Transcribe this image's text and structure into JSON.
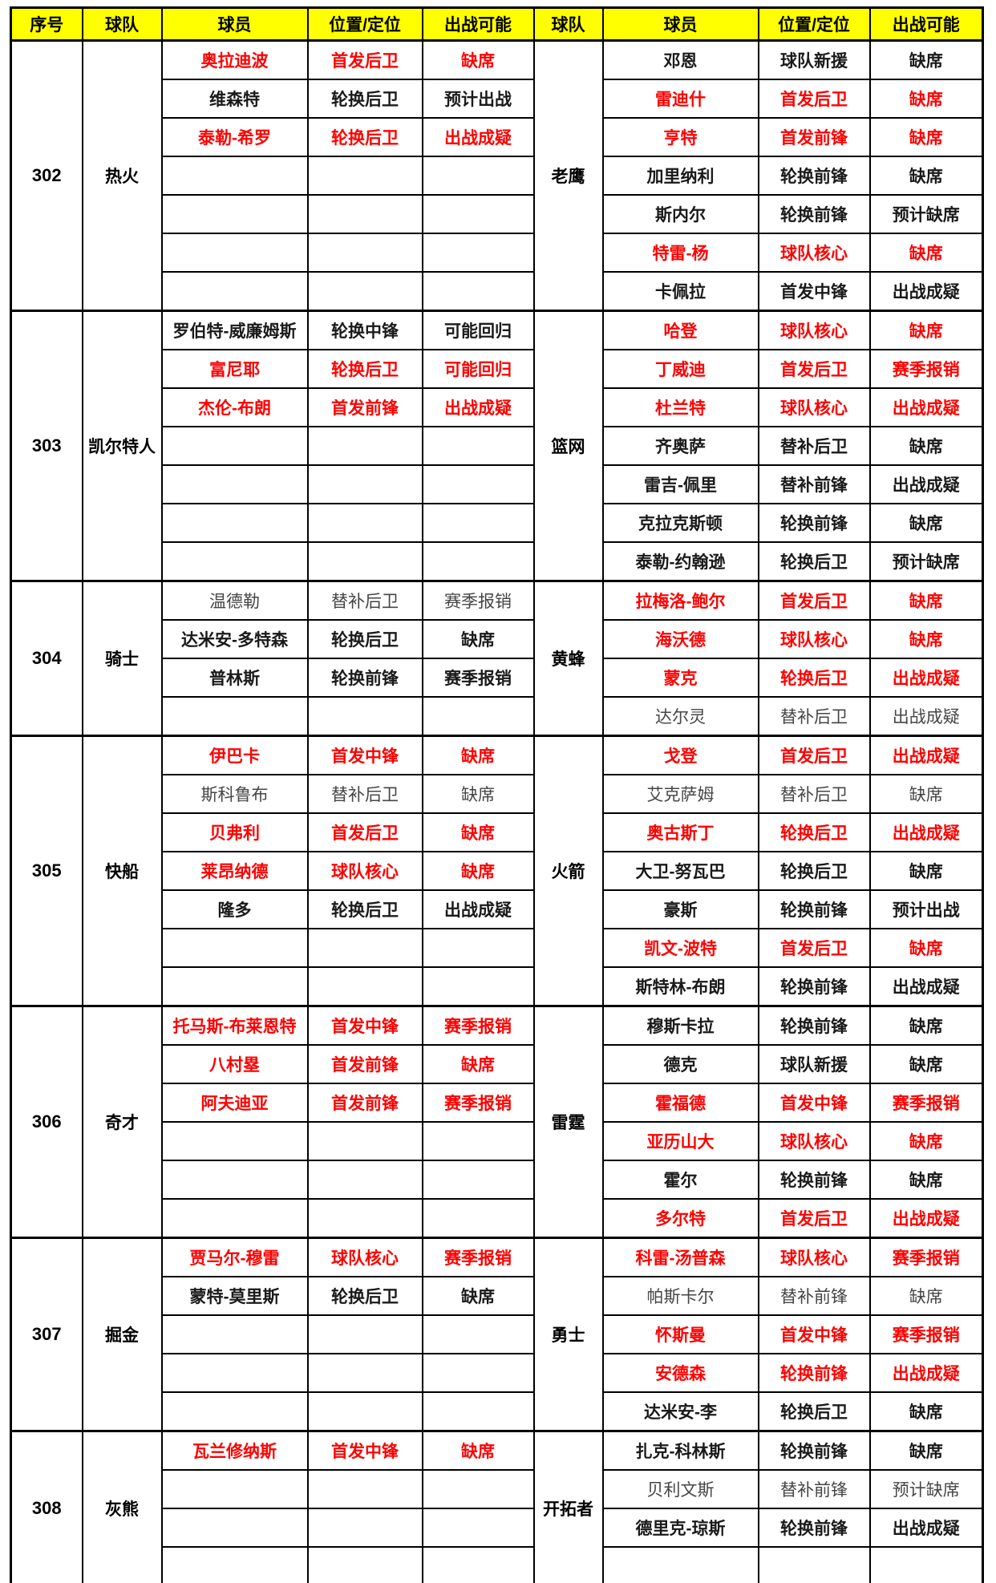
{
  "header": {
    "cols": [
      "序号",
      "球队",
      "球员",
      "位置/定位",
      "出战可能",
      "球队",
      "球员",
      "位置/定位",
      "出战可能"
    ]
  },
  "colors": {
    "header_bg": "#FFFF00",
    "red_text": "#FE0000",
    "black_text": "#1A1A1A",
    "grey_text": "#454545",
    "border": "#000000"
  },
  "sections": [
    {
      "id": "302",
      "left_team": "热火",
      "right_team": "老鹰",
      "rows": [
        {
          "l": [
            "奥拉迪波",
            "首发后卫",
            "缺席"
          ],
          "ls": "red",
          "r": [
            "邓恩",
            "球队新援",
            "缺席"
          ],
          "rs": "black"
        },
        {
          "l": [
            "维森特",
            "轮换后卫",
            "预计出战"
          ],
          "ls": "black",
          "r": [
            "雷迪什",
            "首发后卫",
            "缺席"
          ],
          "rs": "red"
        },
        {
          "l": [
            "泰勒-希罗",
            "轮换后卫",
            "出战成疑"
          ],
          "ls": "red",
          "r": [
            "亨特",
            "首发前锋",
            "缺席"
          ],
          "rs": "red"
        },
        {
          "l": [
            "",
            "",
            ""
          ],
          "ls": "black",
          "r": [
            "加里纳利",
            "轮换前锋",
            "缺席"
          ],
          "rs": "black"
        },
        {
          "l": [
            "",
            "",
            ""
          ],
          "ls": "black",
          "r": [
            "斯内尔",
            "轮换前锋",
            "预计缺席"
          ],
          "rs": "black"
        },
        {
          "l": [
            "",
            "",
            ""
          ],
          "ls": "black",
          "r": [
            "特雷-杨",
            "球队核心",
            "缺席"
          ],
          "rs": "red"
        },
        {
          "l": [
            "",
            "",
            ""
          ],
          "ls": "black",
          "r": [
            "卡佩拉",
            "首发中锋",
            "出战成疑"
          ],
          "rs": "black"
        }
      ]
    },
    {
      "id": "303",
      "left_team": "凯尔特人",
      "right_team": "篮网",
      "rows": [
        {
          "l": [
            "罗伯特-威廉姆斯",
            "轮换中锋",
            "可能回归"
          ],
          "ls": "black",
          "r": [
            "哈登",
            "球队核心",
            "缺席"
          ],
          "rs": "red"
        },
        {
          "l": [
            "富尼耶",
            "轮换后卫",
            "可能回归"
          ],
          "ls": "red",
          "r": [
            "丁威迪",
            "首发后卫",
            "赛季报销"
          ],
          "rs": "red"
        },
        {
          "l": [
            "杰伦-布朗",
            "首发前锋",
            "出战成疑"
          ],
          "ls": "red",
          "r": [
            "杜兰特",
            "球队核心",
            "出战成疑"
          ],
          "rs": "red"
        },
        {
          "l": [
            "",
            "",
            ""
          ],
          "ls": "black",
          "r": [
            "齐奥萨",
            "替补后卫",
            "缺席"
          ],
          "rs": "black"
        },
        {
          "l": [
            "",
            "",
            ""
          ],
          "ls": "black",
          "r": [
            "雷吉-佩里",
            "替补前锋",
            "出战成疑"
          ],
          "rs": "black"
        },
        {
          "l": [
            "",
            "",
            ""
          ],
          "ls": "black",
          "r": [
            "克拉克斯顿",
            "轮换前锋",
            "缺席"
          ],
          "rs": "black"
        },
        {
          "l": [
            "",
            "",
            ""
          ],
          "ls": "black",
          "r": [
            "泰勒-约翰逊",
            "轮换后卫",
            "预计缺席"
          ],
          "rs": "black"
        }
      ]
    },
    {
      "id": "304",
      "left_team": "骑士",
      "right_team": "黄蜂",
      "rows": [
        {
          "l": [
            "温德勒",
            "替补后卫",
            "赛季报销"
          ],
          "ls": "grey",
          "r": [
            "拉梅洛-鲍尔",
            "首发后卫",
            "缺席"
          ],
          "rs": "red"
        },
        {
          "l": [
            "达米安-多特森",
            "轮换后卫",
            "缺席"
          ],
          "ls": "black",
          "r": [
            "海沃德",
            "球队核心",
            "缺席"
          ],
          "rs": "red"
        },
        {
          "l": [
            "普林斯",
            "轮换前锋",
            "赛季报销"
          ],
          "ls": "black",
          "r": [
            "蒙克",
            "轮换后卫",
            "出战成疑"
          ],
          "rs": "red"
        },
        {
          "l": [
            "",
            "",
            ""
          ],
          "ls": "black",
          "r": [
            "达尔灵",
            "替补后卫",
            "出战成疑"
          ],
          "rs": "grey"
        }
      ]
    },
    {
      "id": "305",
      "left_team": "快船",
      "right_team": "火箭",
      "rows": [
        {
          "l": [
            "伊巴卡",
            "首发中锋",
            "缺席"
          ],
          "ls": "red",
          "r": [
            "戈登",
            "首发后卫",
            "出战成疑"
          ],
          "rs": "red"
        },
        {
          "l": [
            "斯科鲁布",
            "替补后卫",
            "缺席"
          ],
          "ls": "grey",
          "r": [
            "艾克萨姆",
            "替补后卫",
            "缺席"
          ],
          "rs": "grey"
        },
        {
          "l": [
            "贝弗利",
            "首发后卫",
            "缺席"
          ],
          "ls": "red",
          "r": [
            "奥古斯丁",
            "轮换后卫",
            "出战成疑"
          ],
          "rs": "red"
        },
        {
          "l": [
            "莱昂纳德",
            "球队核心",
            "缺席"
          ],
          "ls": "red",
          "r": [
            "大卫-努瓦巴",
            "轮换后卫",
            "缺席"
          ],
          "rs": "black"
        },
        {
          "l": [
            "隆多",
            "轮换后卫",
            "出战成疑"
          ],
          "ls": "black",
          "r": [
            "豪斯",
            "轮换前锋",
            "预计出战"
          ],
          "rs": "black"
        },
        {
          "l": [
            "",
            "",
            ""
          ],
          "ls": "black",
          "r": [
            "凯文-波特",
            "首发后卫",
            "缺席"
          ],
          "rs": "red"
        },
        {
          "l": [
            "",
            "",
            ""
          ],
          "ls": "black",
          "r": [
            "斯特林-布朗",
            "轮换前锋",
            "出战成疑"
          ],
          "rs": "black"
        }
      ]
    },
    {
      "id": "306",
      "left_team": "奇才",
      "right_team": "雷霆",
      "rows": [
        {
          "l": [
            "托马斯-布莱恩特",
            "首发中锋",
            "赛季报销"
          ],
          "ls": "red",
          "r": [
            "穆斯卡拉",
            "轮换前锋",
            "缺席"
          ],
          "rs": "black"
        },
        {
          "l": [
            "八村塁",
            "首发前锋",
            "缺席"
          ],
          "ls": "red",
          "r": [
            "德克",
            "球队新援",
            "缺席"
          ],
          "rs": "black"
        },
        {
          "l": [
            "阿夫迪亚",
            "首发前锋",
            "赛季报销"
          ],
          "ls": "red",
          "r": [
            "霍福德",
            "首发中锋",
            "赛季报销"
          ],
          "rs": "red"
        },
        {
          "l": [
            "",
            "",
            ""
          ],
          "ls": "black",
          "r": [
            "亚历山大",
            "球队核心",
            "缺席"
          ],
          "rs": "red"
        },
        {
          "l": [
            "",
            "",
            ""
          ],
          "ls": "black",
          "r": [
            "霍尔",
            "轮换前锋",
            "缺席"
          ],
          "rs": "black"
        },
        {
          "l": [
            "",
            "",
            ""
          ],
          "ls": "black",
          "r": [
            "多尔特",
            "首发后卫",
            "出战成疑"
          ],
          "rs": "red"
        }
      ]
    },
    {
      "id": "307",
      "left_team": "掘金",
      "right_team": "勇士",
      "rows": [
        {
          "l": [
            "贾马尔-穆雷",
            "球队核心",
            "赛季报销"
          ],
          "ls": "red",
          "r": [
            "科雷-汤普森",
            "球队核心",
            "赛季报销"
          ],
          "rs": "red"
        },
        {
          "l": [
            "蒙特-莫里斯",
            "轮换后卫",
            "缺席"
          ],
          "ls": "black",
          "r": [
            "帕斯卡尔",
            "替补前锋",
            "缺席"
          ],
          "rs": "grey"
        },
        {
          "l": [
            "",
            "",
            ""
          ],
          "ls": "black",
          "r": [
            "怀斯曼",
            "首发中锋",
            "赛季报销"
          ],
          "rs": "red"
        },
        {
          "l": [
            "",
            "",
            ""
          ],
          "ls": "black",
          "r": [
            "安德森",
            "轮换前锋",
            "出战成疑"
          ],
          "rs": "red"
        },
        {
          "l": [
            "",
            "",
            ""
          ],
          "ls": "black",
          "r": [
            "达米安-李",
            "轮换后卫",
            "缺席"
          ],
          "rs": "black"
        }
      ]
    },
    {
      "id": "308",
      "left_team": "灰熊",
      "right_team": "开拓者",
      "rows": [
        {
          "l": [
            "瓦兰修纳斯",
            "首发中锋",
            "缺席"
          ],
          "ls": "red",
          "r": [
            "扎克-科林斯",
            "轮换前锋",
            "缺席"
          ],
          "rs": "black"
        },
        {
          "l": [
            "",
            "",
            ""
          ],
          "ls": "black",
          "r": [
            "贝利文斯",
            "替补前锋",
            "预计缺席"
          ],
          "rs": "grey"
        },
        {
          "l": [
            "",
            "",
            ""
          ],
          "ls": "black",
          "r": [
            "德里克-琼斯",
            "轮换前锋",
            "出战成疑"
          ],
          "rs": "black"
        },
        {
          "l": [
            "",
            "",
            ""
          ],
          "ls": "black",
          "r": [
            "",
            "",
            ""
          ],
          "rs": "black"
        }
      ]
    }
  ]
}
